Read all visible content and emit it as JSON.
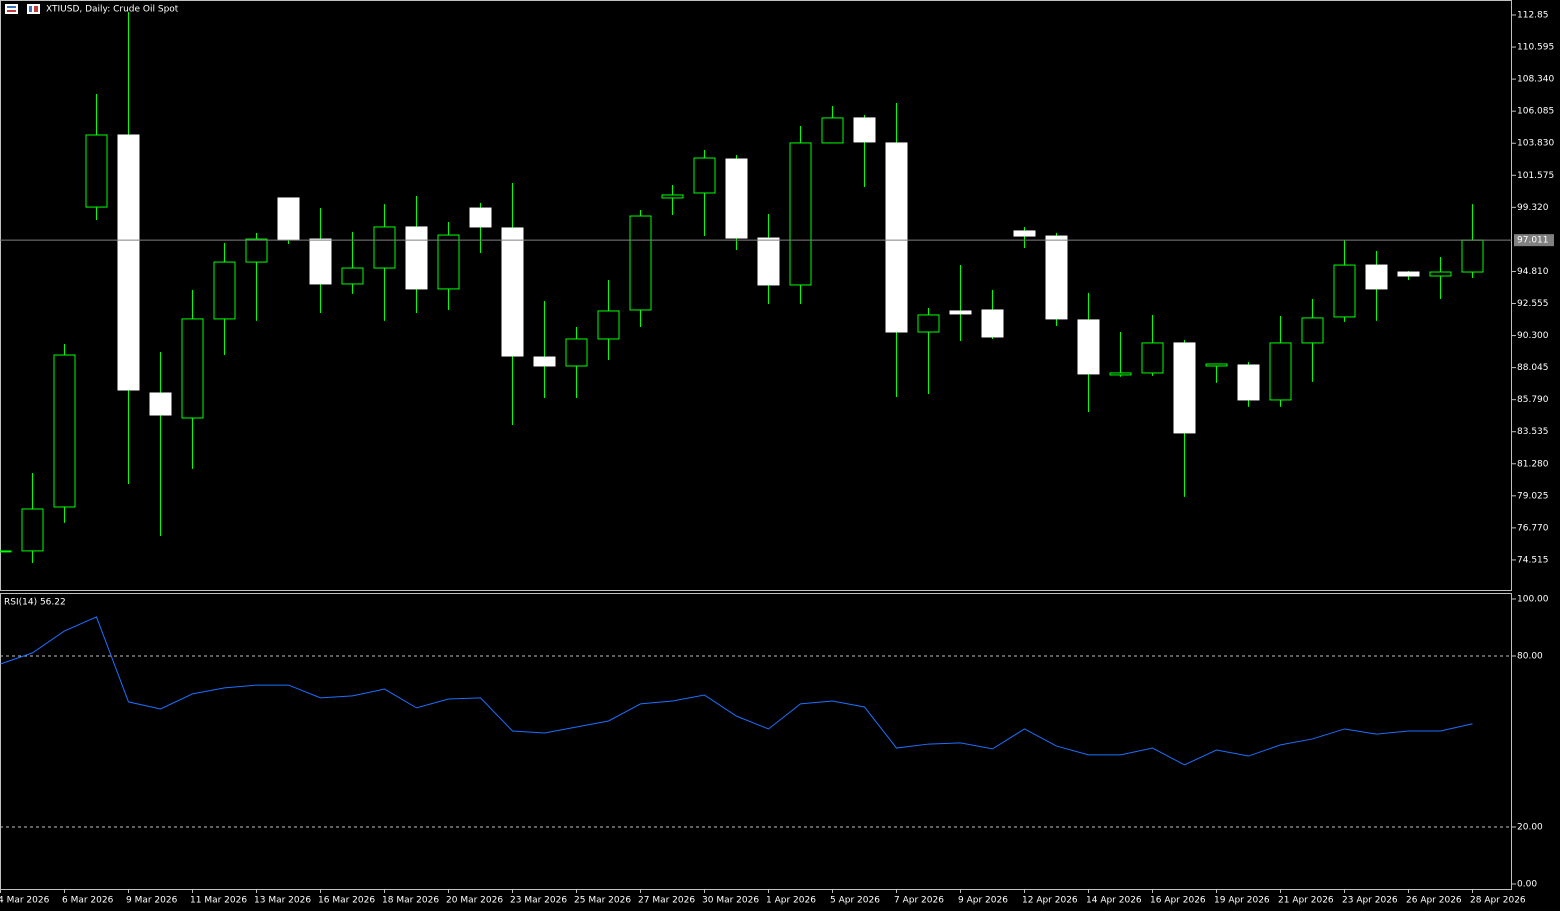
{
  "chart_data": [
    {
      "type": "candlestick",
      "title": "XTIUSD, Daily:  Crude Oil Spot",
      "categories": [
        "4 Mar 2026",
        null,
        "6 Mar 2026",
        null,
        "9 Mar 2026",
        null,
        "11 Mar 2026",
        null,
        "13 Mar 2026",
        null,
        "16 Mar 2026",
        null,
        "18 Mar 2026",
        null,
        "20 Mar 2026",
        null,
        "23 Mar 2026",
        null,
        "25 Mar 2026",
        null,
        "27 Mar 2026",
        null,
        "30 Mar 2026",
        null,
        "1 Apr 2026",
        null,
        "5 Apr 2026",
        null,
        "7 Apr 2026",
        null,
        "9 Apr 2026",
        null,
        "12 Apr 2026",
        null,
        "14 Apr 2026",
        null,
        "16 Apr 2026",
        null,
        "19 Apr 2026",
        null,
        "21 Apr 2026",
        null,
        "23 Apr 2026",
        null,
        "26 Apr 2026",
        null,
        "28 Apr 2026"
      ],
      "open": [
        75.15,
        75.15,
        78.24,
        99.34,
        104.41,
        86.26,
        84.5,
        91.47,
        95.47,
        99.98,
        97.09,
        93.93,
        95.05,
        97.94,
        93.58,
        99.27,
        97.87,
        88.79,
        88.16,
        90.06,
        92.1,
        99.98,
        100.33,
        102.72,
        97.16,
        93.86,
        103.85,
        105.61,
        103.85,
        90.55,
        92.03,
        92.1,
        97.66,
        97.3,
        91.4,
        87.53,
        87.67,
        89.78,
        88.16,
        88.23,
        85.77,
        89.78,
        91.61,
        95.26,
        94.77,
        94.49,
        94.77
      ],
      "high": [
        75.2,
        80.63,
        89.71,
        107.29,
        113.06,
        89.14,
        93.51,
        96.81,
        97.52,
        100.0,
        99.27,
        97.59,
        99.55,
        100.12,
        98.29,
        99.63,
        101.03,
        92.73,
        90.9,
        94.21,
        99.13,
        100.89,
        103.35,
        103.0,
        98.85,
        105.04,
        106.45,
        105.82,
        106.66,
        92.24,
        95.26,
        93.51,
        97.94,
        97.52,
        93.3,
        90.55,
        91.75,
        89.99,
        88.3,
        88.44,
        91.68,
        92.87,
        97.02,
        96.25,
        94.84,
        95.83,
        99.55
      ],
      "low": [
        75.1,
        74.3,
        77.12,
        98.43,
        79.86,
        76.2,
        80.92,
        88.93,
        91.33,
        96.74,
        91.89,
        93.23,
        91.33,
        91.89,
        92.1,
        96.11,
        84.01,
        85.91,
        85.91,
        88.58,
        90.9,
        98.78,
        97.3,
        96.32,
        92.52,
        92.52,
        103.85,
        100.75,
        85.98,
        86.19,
        89.92,
        90.06,
        96.46,
        90.97,
        84.92,
        87.4,
        87.46,
        78.95,
        86.97,
        85.28,
        85.28,
        87.04,
        91.26,
        91.33,
        94.21,
        92.87,
        94.35
      ],
      "close": [
        75.15,
        78.1,
        88.93,
        104.41,
        86.47,
        84.71,
        91.47,
        95.47,
        97.09,
        97.02,
        93.93,
        95.05,
        97.94,
        93.58,
        97.37,
        97.94,
        88.86,
        88.16,
        90.06,
        92.03,
        98.71,
        100.19,
        102.79,
        97.16,
        93.86,
        103.85,
        105.61,
        103.92,
        90.55,
        91.75,
        91.82,
        90.2,
        97.3,
        91.47,
        87.6,
        87.67,
        89.78,
        83.45,
        88.3,
        85.77,
        89.78,
        91.54,
        95.26,
        93.58,
        94.49,
        94.77,
        97.011
      ],
      "up_color": "#00ff00",
      "up_fill": "#000000",
      "down_color": "#ffffff",
      "wick_color": "#00ff00",
      "current_price": 97.011,
      "current_price_color": "#808080",
      "ylim": [
        72.4,
        113.906
      ],
      "yticks": [
        112.85,
        110.595,
        {
          "value": 108.34,
          "label": "108.340"
        },
        106.085,
        {
          "value": 103.83,
          "label": "103.830"
        },
        101.575,
        {
          "value": 99.32,
          "label": "99.320"
        },
        {
          "value": 94.81,
          "label": "94.810"
        },
        92.555,
        {
          "value": 90.3,
          "label": "90.300"
        },
        88.045,
        {
          "value": 85.79,
          "label": "85.790"
        },
        83.535,
        {
          "value": 81.28,
          "label": "81.280"
        },
        79.025,
        {
          "value": 76.77,
          "label": "76.770"
        },
        74.515
      ]
    },
    {
      "type": "line",
      "title": "RSI(14) 56.22",
      "series": [
        {
          "name": "RSI(14)",
          "color": "#1e6fff",
          "values": [
            77.2,
            81.1,
            88.8,
            93.7,
            63.9,
            61.4,
            66.7,
            68.8,
            69.8,
            69.8,
            65.3,
            66.0,
            68.4,
            61.8,
            64.9,
            65.3,
            53.7,
            53.0,
            55.1,
            57.2,
            63.2,
            64.2,
            66.3,
            58.9,
            54.4,
            63.2,
            64.2,
            62.1,
            47.7,
            49.1,
            49.5,
            47.4,
            54.4,
            48.4,
            45.3,
            45.3,
            47.7,
            41.8,
            47.0,
            44.9,
            48.8,
            50.9,
            54.4,
            52.6,
            53.7,
            53.7,
            56.22
          ]
        }
      ],
      "levels": [
        80,
        20
      ],
      "ylim": [
        0,
        100
      ],
      "yticks": [
        {
          "value": 100,
          "label": "100.00"
        },
        {
          "value": 80,
          "label": "80.00"
        },
        {
          "value": 20,
          "label": "20.00"
        },
        {
          "value": 0,
          "label": "0.00"
        }
      ]
    }
  ]
}
